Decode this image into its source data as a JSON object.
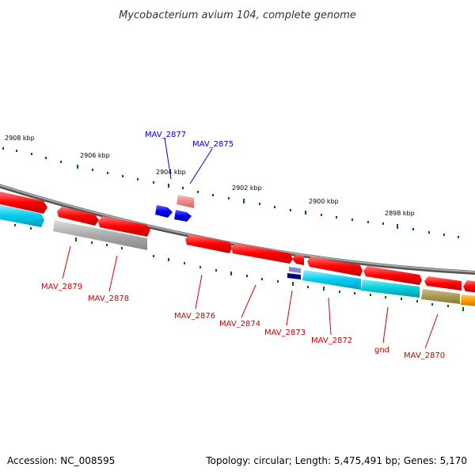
{
  "title": "Mycobacterium avium 104, complete genome",
  "footer": {
    "accession": "Accession: NC_008595",
    "topology": "Topology: circular; Length: 5,475,491 bp; Genes: 5,170"
  },
  "ticks": [
    {
      "label": "2908 kbp"
    },
    {
      "label": "2906 kbp"
    },
    {
      "label": "2904 kbp"
    },
    {
      "label": "2902 kbp"
    },
    {
      "label": "2900 kbp"
    },
    {
      "label": "2898 kbp"
    }
  ],
  "gene_labels": [
    {
      "name": "MAV_2877",
      "color": "#0000cc"
    },
    {
      "name": "MAV_2875",
      "color": "#0000cc"
    },
    {
      "name": "MAV_2879",
      "color": "#cc0000"
    },
    {
      "name": "MAV_2878",
      "color": "#cc0000"
    },
    {
      "name": "MAV_2876",
      "color": "#cc0000"
    },
    {
      "name": "MAV_2874",
      "color": "#cc0000"
    },
    {
      "name": "MAV_2873",
      "color": "#cc0000"
    },
    {
      "name": "MAV_2872",
      "color": "#cc0000"
    },
    {
      "name": "gnd",
      "color": "#cc0000"
    },
    {
      "name": "MAV_2870",
      "color": "#cc0000"
    }
  ],
  "colors": {
    "backbone": "#808080",
    "gene_red": "#ff0000",
    "gene_blue": "#0000ee",
    "gene_pink": "#ee8888",
    "gene_cyan": "#00ccee",
    "gene_gray": "#aaaaaa",
    "gene_olive": "#aa9955",
    "gene_orange": "#ff9900",
    "gene_navy": "#000088",
    "gene_lavender": "#8888cc",
    "tick_green": "#006600"
  }
}
